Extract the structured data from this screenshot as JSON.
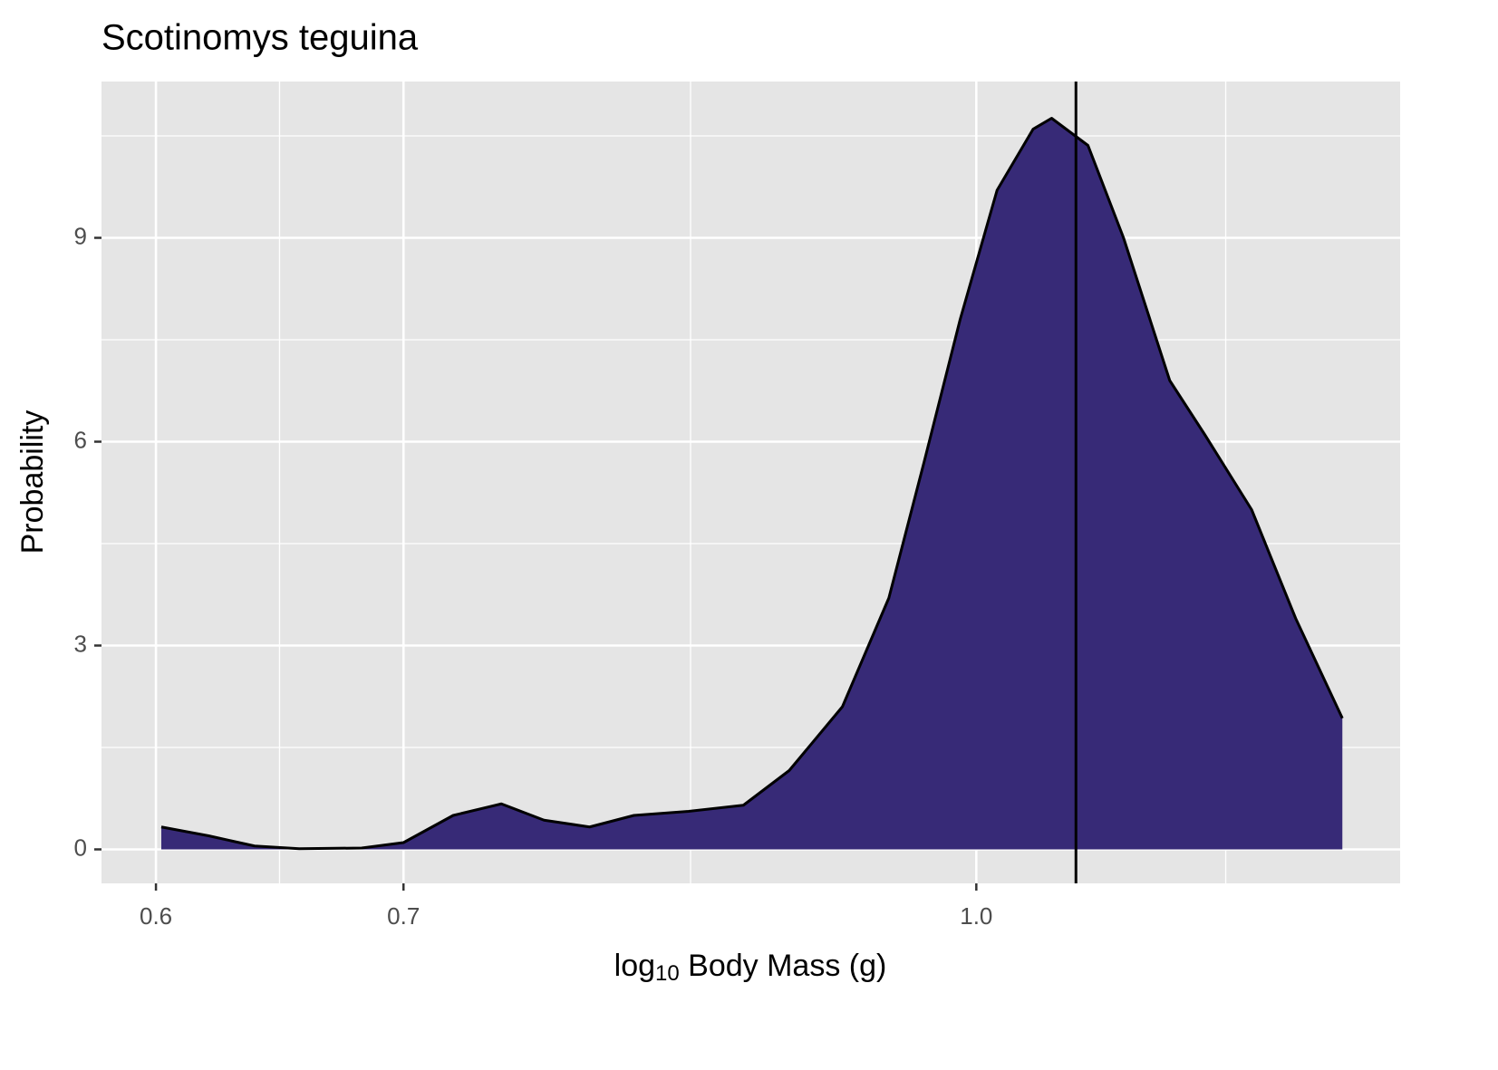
{
  "chart_data": {
    "type": "density",
    "title": "Scotinomys teguina",
    "xlabel_parts": [
      "log",
      "10",
      " Body Mass (g)"
    ],
    "ylabel": "Probability",
    "x": [
      0.602,
      0.62,
      0.638,
      0.656,
      0.682,
      0.7,
      0.722,
      0.744,
      0.764,
      0.786,
      0.808,
      0.836,
      0.865,
      0.89,
      0.92,
      0.947,
      0.968,
      0.99,
      1.013,
      1.036,
      1.048,
      1.072,
      1.096,
      1.128,
      1.153,
      1.187,
      1.22,
      1.256
    ],
    "values": [
      0.33,
      0.2,
      0.05,
      0.01,
      0.02,
      0.1,
      0.5,
      0.67,
      0.43,
      0.33,
      0.5,
      0.56,
      0.65,
      1.16,
      2.1,
      3.7,
      5.7,
      7.8,
      9.7,
      10.6,
      10.76,
      10.36,
      9.0,
      6.9,
      6.1,
      5.0,
      3.4,
      1.93
    ],
    "color": "#372a77",
    "vline": 1.064,
    "xscale": "log",
    "xlim": [
      0.58,
      1.302
    ],
    "ylim": [
      -0.5,
      11.3
    ],
    "xticks": [
      0.6,
      0.7,
      {
        "value": 1,
        "label": "1.0"
      }
    ],
    "yticks": [
      0,
      3,
      6,
      9
    ],
    "xminor": [
      0.648,
      0.837,
      1.168
    ],
    "yminor": [
      1.5,
      4.5,
      7.5,
      10.5
    ],
    "grid": true
  }
}
